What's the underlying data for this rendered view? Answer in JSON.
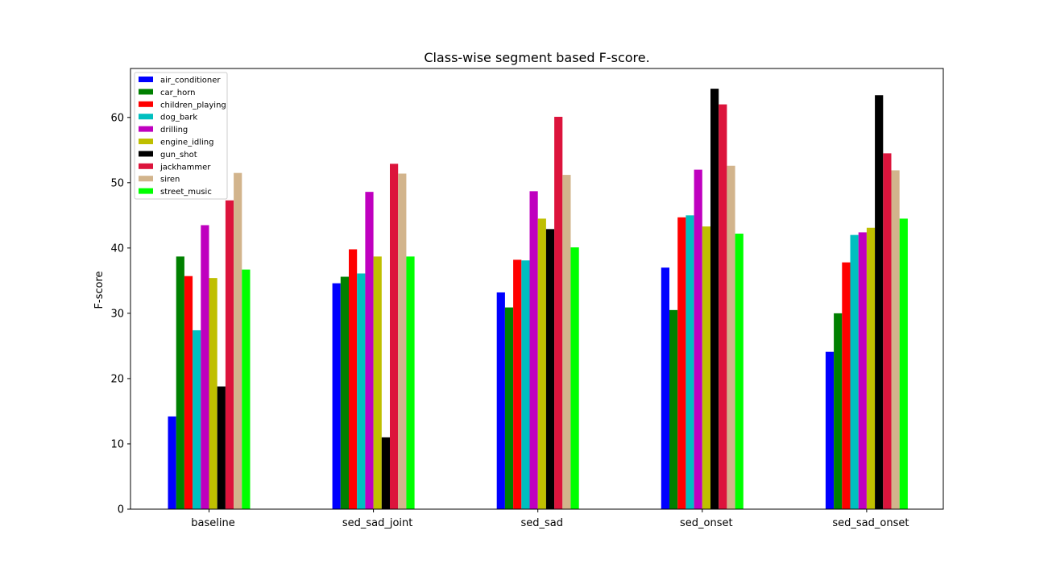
{
  "chart_data": {
    "type": "bar",
    "title": "Class-wise segment based F-score.",
    "xlabel": "",
    "ylabel": "F-score",
    "ylim": [
      0,
      67.5
    ],
    "yticks": [
      0,
      10,
      20,
      30,
      40,
      50,
      60
    ],
    "grid": false,
    "legend_placement": "top-left",
    "categories": [
      "baseline",
      "sed_sad_joint",
      "sed_sad",
      "sed_onset",
      "sed_sad_onset"
    ],
    "series": [
      {
        "name": "air_conditioner",
        "color": "#0000ff",
        "values": [
          14.2,
          34.6,
          33.2,
          37.0,
          24.1
        ]
      },
      {
        "name": "car_horn",
        "color": "#008000",
        "values": [
          38.7,
          35.6,
          30.9,
          30.5,
          30.0
        ]
      },
      {
        "name": "children_playing",
        "color": "#ff0000",
        "values": [
          35.7,
          39.8,
          38.2,
          44.7,
          37.8
        ]
      },
      {
        "name": "dog_bark",
        "color": "#00bfbf",
        "values": [
          27.4,
          36.1,
          38.1,
          45.0,
          42.0
        ]
      },
      {
        "name": "drilling",
        "color": "#bf00bf",
        "values": [
          43.5,
          48.6,
          48.7,
          52.0,
          42.4
        ]
      },
      {
        "name": "engine_idling",
        "color": "#bfbf00",
        "values": [
          35.4,
          38.7,
          44.5,
          43.3,
          43.1
        ]
      },
      {
        "name": "gun_shot",
        "color": "#000000",
        "values": [
          18.8,
          11.0,
          42.9,
          64.4,
          63.4
        ]
      },
      {
        "name": "jackhammer",
        "color": "#dc143c",
        "values": [
          47.3,
          52.9,
          60.1,
          62.0,
          54.5
        ]
      },
      {
        "name": "siren",
        "color": "#d2b48c",
        "values": [
          51.5,
          51.4,
          51.2,
          52.6,
          51.9
        ]
      },
      {
        "name": "street_music",
        "color": "#00ff00",
        "values": [
          36.7,
          38.7,
          40.1,
          42.2,
          44.5
        ]
      }
    ]
  }
}
